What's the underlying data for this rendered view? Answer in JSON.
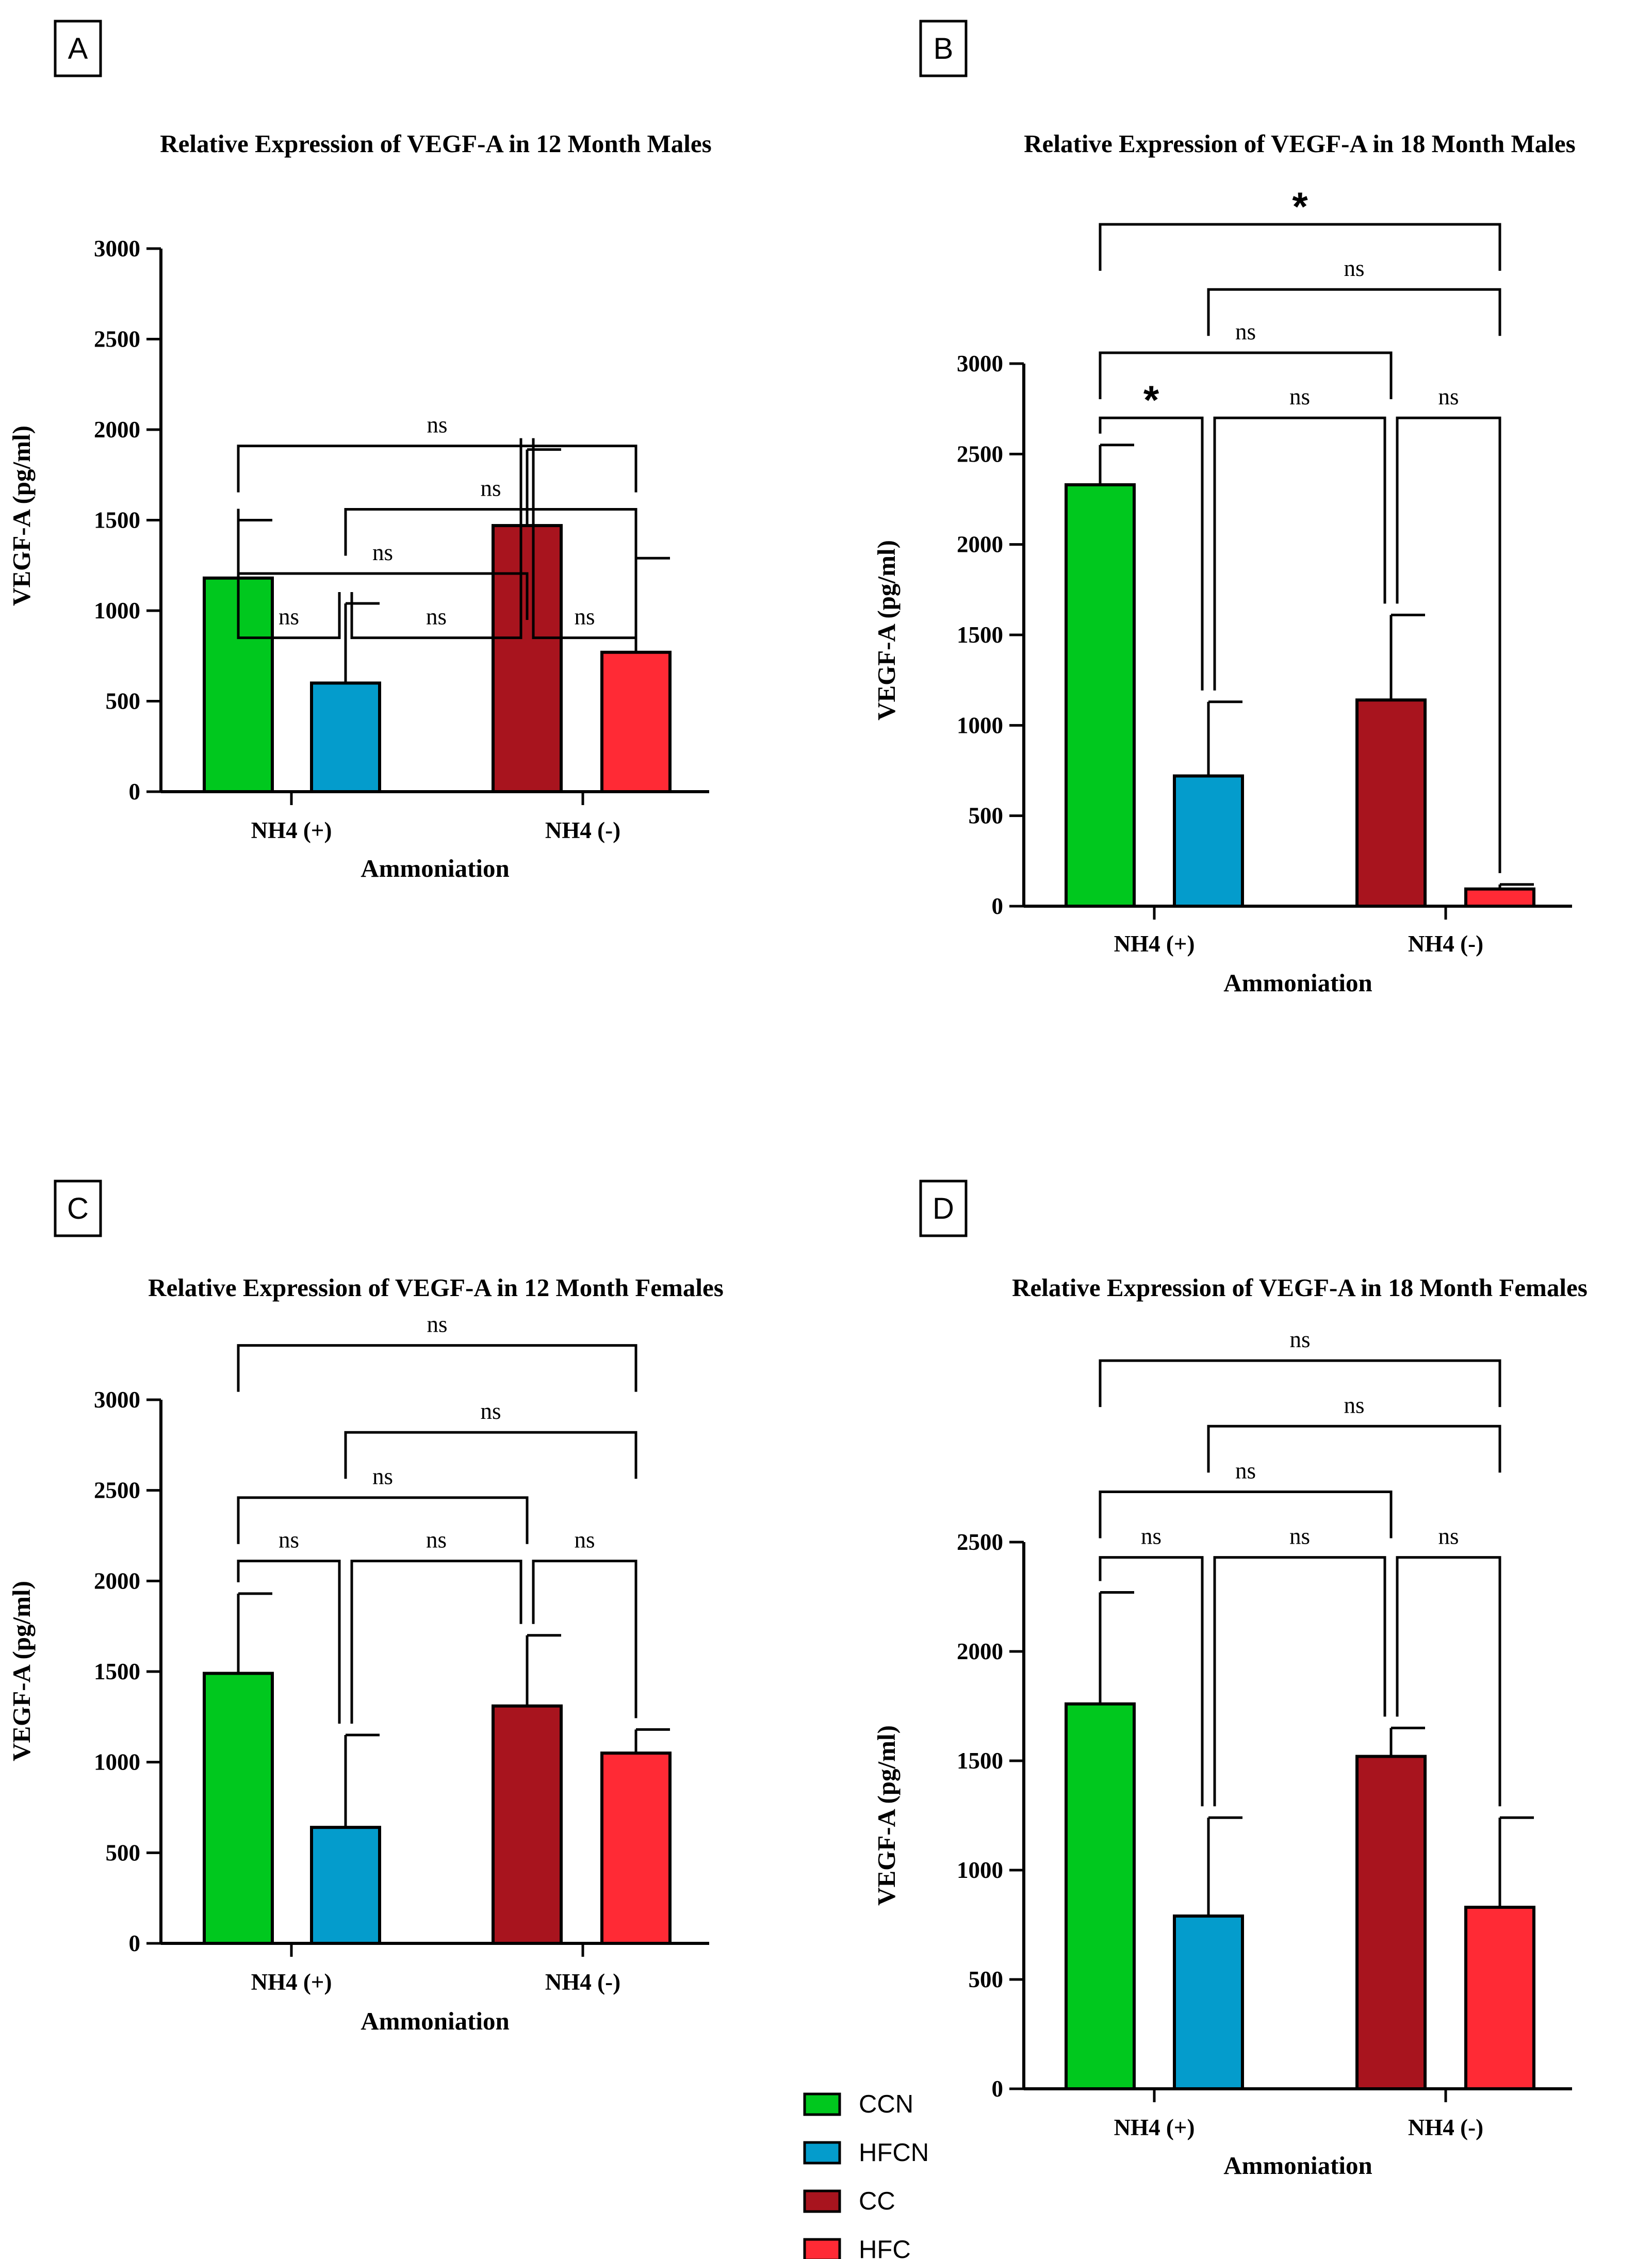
{
  "chart_data": [
    {
      "type": "bar",
      "panel": "A",
      "title": "Relative Expression of VEGF-A in 12 Month Males",
      "xlabel": "Ammoniation",
      "ylabel": "VEGF-A (pg/ml)",
      "categories": [
        "NH4 (+)",
        "NH4 (-)"
      ],
      "ylim": [
        0,
        3000
      ],
      "yticks": [
        "0",
        "500",
        "1000",
        "1500",
        "2000",
        "2500",
        "3000"
      ],
      "series": [
        {
          "name": "CCN",
          "values": [
            1180,
            null
          ],
          "errors": [
            320,
            null
          ]
        },
        {
          "name": "HFCN",
          "values": [
            600,
            null
          ],
          "errors": [
            440,
            null
          ]
        },
        {
          "name": "CC",
          "values": [
            null,
            1470
          ],
          "errors": [
            null,
            420
          ]
        },
        {
          "name": "HFC",
          "values": [
            null,
            770
          ],
          "errors": [
            null,
            520
          ]
        }
      ],
      "comparisons": [
        {
          "from": 0,
          "to": 3,
          "label": "ns",
          "level": 1910
        },
        {
          "from": 1,
          "to": 3,
          "label": "ns",
          "level": 1560
        },
        {
          "from": 0,
          "to": 2,
          "label": "ns",
          "level": 1205
        },
        {
          "from": 0,
          "to": 1,
          "label": "ns",
          "level": 850
        },
        {
          "from": 1,
          "to": 2,
          "label": "ns",
          "level": 850
        },
        {
          "from": 2,
          "to": 3,
          "label": "ns",
          "level": 850
        }
      ]
    },
    {
      "type": "bar",
      "panel": "B",
      "title": "Relative Expression of VEGF-A in 18 Month Males",
      "xlabel": "Ammoniation",
      "ylabel": "VEGF-A (pg/ml)",
      "categories": [
        "NH4 (+)",
        "NH4 (-)"
      ],
      "ylim": [
        0,
        3000
      ],
      "yticks": [
        "0",
        "500",
        "1000",
        "1500",
        "2000",
        "2500",
        "3000"
      ],
      "series": [
        {
          "name": "CCN",
          "values": [
            2330,
            null
          ],
          "errors": [
            220,
            null
          ]
        },
        {
          "name": "HFCN",
          "values": [
            720,
            null
          ],
          "errors": [
            410,
            null
          ]
        },
        {
          "name": "CC",
          "values": [
            null,
            1140
          ],
          "errors": [
            null,
            470
          ]
        },
        {
          "name": "HFC",
          "values": [
            null,
            95
          ],
          "errors": [
            null,
            25
          ]
        }
      ],
      "comparisons": [
        {
          "from": 0,
          "to": 3,
          "label": "*",
          "level": 3770
        },
        {
          "from": 1,
          "to": 3,
          "label": "ns",
          "level": 3410
        },
        {
          "from": 0,
          "to": 2,
          "label": "ns",
          "level": 3060
        },
        {
          "from": 0,
          "to": 1,
          "label": "*",
          "level": 2700
        },
        {
          "from": 1,
          "to": 2,
          "label": "ns",
          "level": 2700
        },
        {
          "from": 2,
          "to": 3,
          "label": "ns",
          "level": 2700
        }
      ]
    },
    {
      "type": "bar",
      "panel": "C",
      "title": "Relative Expression of VEGF-A in 12 Month Females",
      "xlabel": "Ammoniation",
      "ylabel": "VEGF-A (pg/ml)",
      "categories": [
        "NH4 (+)",
        "NH4 (-)"
      ],
      "ylim": [
        0,
        3000
      ],
      "yticks": [
        "0",
        "500",
        "1000",
        "1500",
        "2000",
        "2500",
        "3000"
      ],
      "series": [
        {
          "name": "CCN",
          "values": [
            1490,
            null
          ],
          "errors": [
            440,
            null
          ]
        },
        {
          "name": "HFCN",
          "values": [
            640,
            null
          ],
          "errors": [
            510,
            null
          ]
        },
        {
          "name": "CC",
          "values": [
            null,
            1310
          ],
          "errors": [
            null,
            390
          ]
        },
        {
          "name": "HFC",
          "values": [
            null,
            1050
          ],
          "errors": [
            null,
            130
          ]
        }
      ],
      "comparisons": [
        {
          "from": 0,
          "to": 3,
          "label": "ns",
          "level": 3300
        },
        {
          "from": 1,
          "to": 3,
          "label": "ns",
          "level": 2820
        },
        {
          "from": 0,
          "to": 2,
          "label": "ns",
          "level": 2460
        },
        {
          "from": 0,
          "to": 1,
          "label": "ns",
          "level": 2110
        },
        {
          "from": 1,
          "to": 2,
          "label": "ns",
          "level": 2110
        },
        {
          "from": 2,
          "to": 3,
          "label": "ns",
          "level": 2110
        }
      ]
    },
    {
      "type": "bar",
      "panel": "D",
      "title": "Relative Expression of VEGF-A in 18 Month Females",
      "xlabel": "Ammoniation",
      "ylabel": "VEGF-A (pg/ml)",
      "categories": [
        "NH4 (+)",
        "NH4 (-)"
      ],
      "ylim": [
        0,
        2500
      ],
      "yticks": [
        "0",
        "500",
        "1000",
        "1500",
        "2000",
        "2500"
      ],
      "series": [
        {
          "name": "CCN",
          "values": [
            1760,
            null
          ],
          "errors": [
            510,
            null
          ]
        },
        {
          "name": "HFCN",
          "values": [
            790,
            null
          ],
          "errors": [
            450,
            null
          ]
        },
        {
          "name": "CC",
          "values": [
            null,
            1520
          ],
          "errors": [
            null,
            130
          ]
        },
        {
          "name": "HFC",
          "values": [
            null,
            830
          ],
          "errors": [
            null,
            410
          ]
        }
      ],
      "comparisons": [
        {
          "from": 0,
          "to": 3,
          "label": "ns",
          "level": 3330
        },
        {
          "from": 1,
          "to": 3,
          "label": "ns",
          "level": 3030
        },
        {
          "from": 0,
          "to": 2,
          "label": "ns",
          "level": 2730
        },
        {
          "from": 0,
          "to": 1,
          "label": "ns",
          "level": 2430
        },
        {
          "from": 1,
          "to": 2,
          "label": "ns",
          "level": 2430
        },
        {
          "from": 2,
          "to": 3,
          "label": "ns",
          "level": 2430
        }
      ]
    }
  ],
  "legend": [
    {
      "label": "CCN",
      "color": "#00c81e"
    },
    {
      "label": "HFCN",
      "color": "#049ccc"
    },
    {
      "label": "CC",
      "color": "#a8141e"
    },
    {
      "label": "HFC",
      "color": "#ff2a35"
    }
  ]
}
